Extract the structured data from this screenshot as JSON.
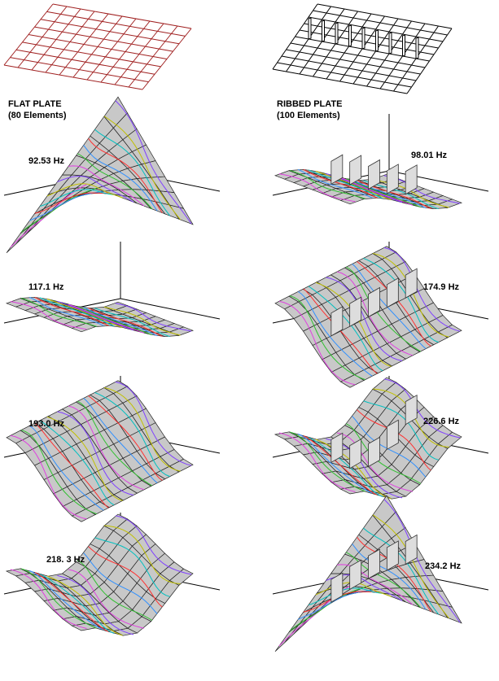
{
  "flat": {
    "title": "FLAT PLATE",
    "subtitle": "(80 Elements)",
    "modes": [
      "92.53 Hz",
      "117.1 Hz",
      "193.0 Hz",
      "218. 3 Hz"
    ]
  },
  "ribbed": {
    "title": "RIBBED PLATE",
    "subtitle": "(100 Elements)",
    "modes": [
      "98.01 Hz",
      "174.9 Hz",
      "226.6 Hz",
      "234.2 Hz"
    ]
  }
}
